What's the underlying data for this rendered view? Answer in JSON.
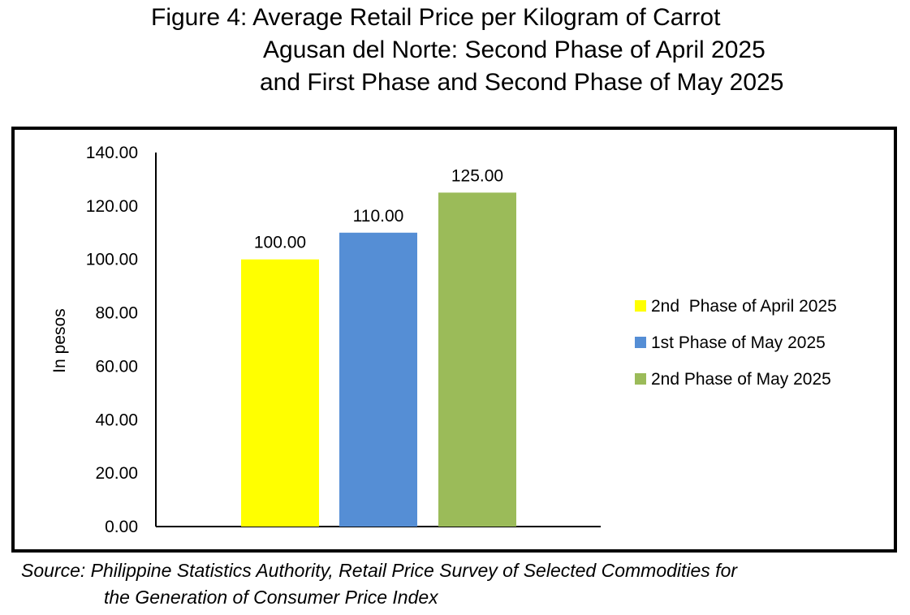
{
  "title": {
    "line1": "Figure 4: Average Retail Price per Kilogram of Carrot",
    "line2": "Agusan del Norte: Second Phase of April 2025",
    "line3": "and First Phase and Second Phase of May 2025"
  },
  "source": {
    "line1": "Source: Philippine Statistics Authority, Retail Price Survey of Selected Commodities for",
    "line2": "the Generation of Consumer Price Index"
  },
  "chart_data": {
    "type": "bar",
    "ylabel": "In pesos",
    "xlabel": "",
    "ylim": [
      0,
      140
    ],
    "y_tick_step": 20,
    "y_tick_labels": [
      "0.00",
      "20.00",
      "40.00",
      "60.00",
      "80.00",
      "100.00",
      "120.00",
      "140.00"
    ],
    "grid": false,
    "legend_position": "right",
    "series": [
      {
        "name": "2nd  Phase of April 2025",
        "value": 100,
        "label": "100.00",
        "color": "#ffff00"
      },
      {
        "name": "1st Phase of May 2025",
        "value": 110,
        "label": "110.00",
        "color": "#558ed5"
      },
      {
        "name": "2nd Phase of May 2025",
        "value": 125,
        "label": "125.00",
        "color": "#9bbb59"
      }
    ]
  }
}
